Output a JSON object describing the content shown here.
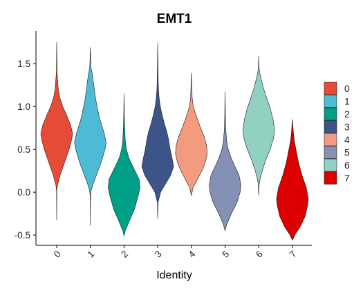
{
  "chart_data": {
    "type": "violin",
    "title": "EMT1",
    "xlabel": "Identity",
    "ylabel": "",
    "ylim": [
      -0.62,
      1.88
    ],
    "yticks": [
      "-0.5",
      "0.0",
      "0.5",
      "1.0",
      "1.5"
    ],
    "categories": [
      "0",
      "1",
      "2",
      "3",
      "4",
      "5",
      "6",
      "7"
    ],
    "legend_position": "right",
    "series": [
      {
        "name": "0",
        "color": "#E64B35",
        "min": -0.33,
        "max": 1.75,
        "profile": [
          [
            -0.33,
            0
          ],
          [
            0.02,
            0.01
          ],
          [
            0.08,
            0.05
          ],
          [
            0.2,
            0.22
          ],
          [
            0.35,
            0.5
          ],
          [
            0.5,
            0.78
          ],
          [
            0.62,
            0.95
          ],
          [
            0.68,
            1.0
          ],
          [
            0.78,
            0.88
          ],
          [
            0.9,
            0.62
          ],
          [
            1.0,
            0.38
          ],
          [
            1.1,
            0.2
          ],
          [
            1.2,
            0.1
          ],
          [
            1.3,
            0.06
          ],
          [
            1.4,
            0.02
          ],
          [
            1.75,
            0
          ]
        ]
      },
      {
        "name": "1",
        "color": "#4DBBD5",
        "min": -0.39,
        "max": 1.69,
        "profile": [
          [
            -0.39,
            0
          ],
          [
            -0.05,
            0.01
          ],
          [
            0.02,
            0.05
          ],
          [
            0.1,
            0.18
          ],
          [
            0.2,
            0.38
          ],
          [
            0.35,
            0.68
          ],
          [
            0.5,
            0.92
          ],
          [
            0.58,
            1.0
          ],
          [
            0.7,
            0.85
          ],
          [
            0.85,
            0.6
          ],
          [
            1.0,
            0.42
          ],
          [
            1.1,
            0.32
          ],
          [
            1.2,
            0.25
          ],
          [
            1.3,
            0.18
          ],
          [
            1.4,
            0.1
          ],
          [
            1.45,
            0.04
          ],
          [
            1.69,
            0
          ]
        ]
      },
      {
        "name": "2",
        "color": "#00A087",
        "min": -0.51,
        "max": 1.15,
        "profile": [
          [
            -0.51,
            0
          ],
          [
            -0.45,
            0.08
          ],
          [
            -0.35,
            0.3
          ],
          [
            -0.2,
            0.65
          ],
          [
            -0.05,
            0.88
          ],
          [
            0.05,
            1.0
          ],
          [
            0.15,
            0.95
          ],
          [
            0.3,
            0.55
          ],
          [
            0.4,
            0.3
          ],
          [
            0.5,
            0.15
          ],
          [
            0.6,
            0.08
          ],
          [
            0.75,
            0.04
          ],
          [
            0.9,
            0.02
          ],
          [
            1.15,
            0
          ]
        ]
      },
      {
        "name": "3",
        "color": "#3C5488",
        "min": -0.31,
        "max": 1.74,
        "profile": [
          [
            -0.31,
            0
          ],
          [
            -0.12,
            0.02
          ],
          [
            0.0,
            0.18
          ],
          [
            0.1,
            0.5
          ],
          [
            0.2,
            0.82
          ],
          [
            0.3,
            1.0
          ],
          [
            0.4,
            0.9
          ],
          [
            0.5,
            0.78
          ],
          [
            0.6,
            0.7
          ],
          [
            0.7,
            0.58
          ],
          [
            0.8,
            0.42
          ],
          [
            0.9,
            0.28
          ],
          [
            1.0,
            0.16
          ],
          [
            1.1,
            0.09
          ],
          [
            1.2,
            0.05
          ],
          [
            1.3,
            0.03
          ],
          [
            1.74,
            0
          ]
        ]
      },
      {
        "name": "4",
        "color": "#F39B7F",
        "min": -0.04,
        "max": 1.39,
        "profile": [
          [
            -0.04,
            0
          ],
          [
            0.05,
            0.1
          ],
          [
            0.15,
            0.38
          ],
          [
            0.25,
            0.66
          ],
          [
            0.35,
            0.88
          ],
          [
            0.45,
            1.0
          ],
          [
            0.55,
            0.95
          ],
          [
            0.65,
            0.8
          ],
          [
            0.75,
            0.58
          ],
          [
            0.85,
            0.38
          ],
          [
            0.95,
            0.2
          ],
          [
            1.0,
            0.12
          ],
          [
            1.1,
            0.05
          ],
          [
            1.39,
            0
          ]
        ]
      },
      {
        "name": "5",
        "color": "#8491B4",
        "min": -0.45,
        "max": 1.17,
        "profile": [
          [
            -0.45,
            0
          ],
          [
            -0.38,
            0.1
          ],
          [
            -0.25,
            0.4
          ],
          [
            -0.12,
            0.75
          ],
          [
            0.0,
            0.95
          ],
          [
            0.08,
            1.0
          ],
          [
            0.2,
            0.88
          ],
          [
            0.3,
            0.62
          ],
          [
            0.4,
            0.38
          ],
          [
            0.5,
            0.2
          ],
          [
            0.6,
            0.1
          ],
          [
            0.75,
            0.04
          ],
          [
            0.9,
            0.02
          ],
          [
            1.17,
            0
          ]
        ]
      },
      {
        "name": "6",
        "color": "#91D1C2",
        "min": -0.04,
        "max": 1.59,
        "profile": [
          [
            -0.04,
            0
          ],
          [
            0.08,
            0.02
          ],
          [
            0.15,
            0.08
          ],
          [
            0.25,
            0.22
          ],
          [
            0.38,
            0.45
          ],
          [
            0.5,
            0.72
          ],
          [
            0.62,
            0.92
          ],
          [
            0.72,
            1.0
          ],
          [
            0.85,
            0.9
          ],
          [
            0.98,
            0.72
          ],
          [
            1.1,
            0.5
          ],
          [
            1.2,
            0.32
          ],
          [
            1.3,
            0.18
          ],
          [
            1.38,
            0.08
          ],
          [
            1.45,
            0.02
          ],
          [
            1.59,
            0
          ]
        ]
      },
      {
        "name": "7",
        "color": "#DC0000",
        "min": -0.56,
        "max": 0.85,
        "profile": [
          [
            -0.56,
            0
          ],
          [
            -0.5,
            0.15
          ],
          [
            -0.4,
            0.5
          ],
          [
            -0.28,
            0.8
          ],
          [
            -0.15,
            0.96
          ],
          [
            -0.08,
            1.0
          ],
          [
            0.05,
            0.88
          ],
          [
            0.2,
            0.6
          ],
          [
            0.35,
            0.38
          ],
          [
            0.5,
            0.22
          ],
          [
            0.6,
            0.12
          ],
          [
            0.7,
            0.06
          ],
          [
            0.85,
            0
          ]
        ]
      }
    ]
  }
}
